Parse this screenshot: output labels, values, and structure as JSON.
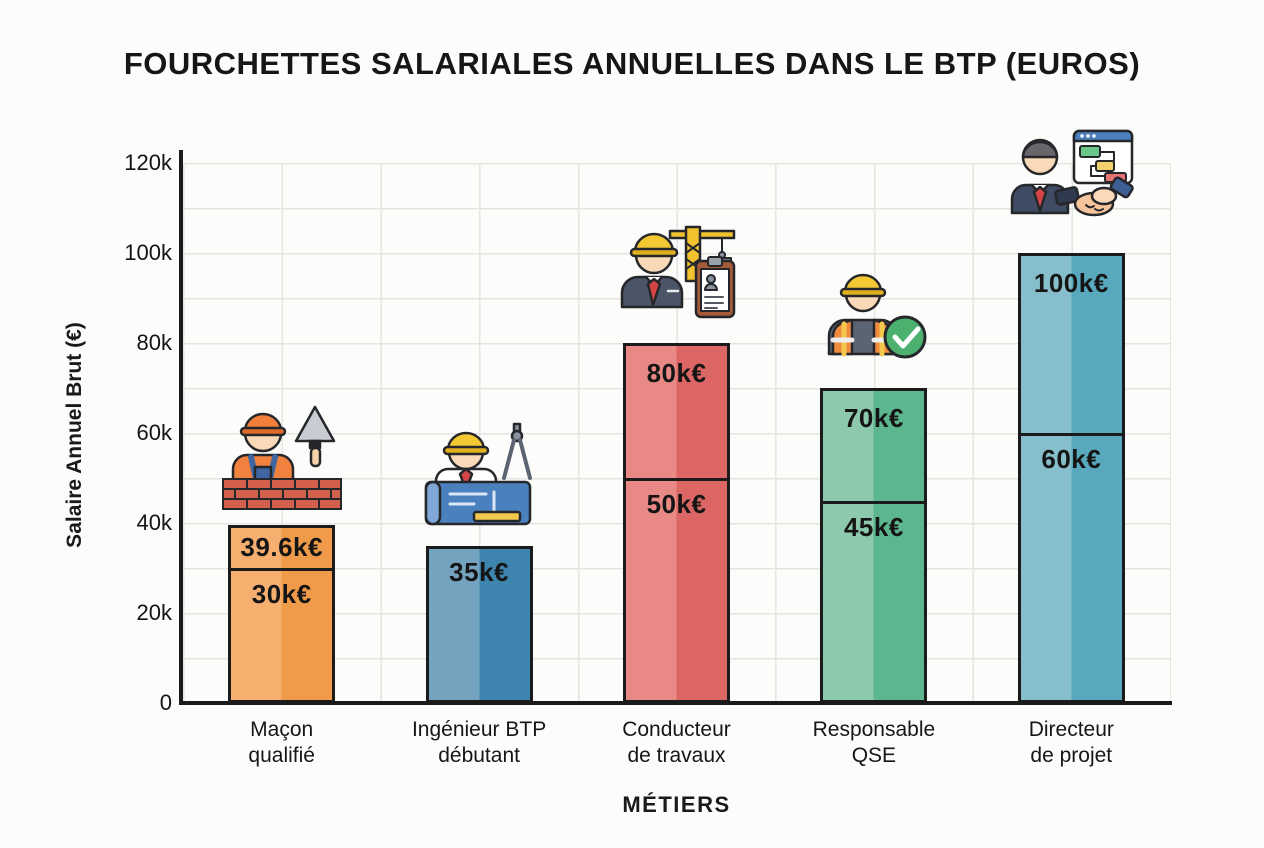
{
  "chart_data": {
    "type": "bar",
    "title": "FOURCHETTES SALARIALES ANNUELLES DANS LE BTP (EUROS)",
    "xlabel": "MÉTIERS",
    "ylabel": "Salaire Annuel Brut (€)",
    "ylim_keur": [
      0,
      120
    ],
    "grid": true,
    "legend": false,
    "yticks": [
      {
        "value_keur": 0,
        "label": "0"
      },
      {
        "value_keur": 20,
        "label": "20k"
      },
      {
        "value_keur": 40,
        "label": "40k"
      },
      {
        "value_keur": 60,
        "label": "60k"
      },
      {
        "value_keur": 80,
        "label": "80k"
      },
      {
        "value_keur": 100,
        "label": "100k"
      },
      {
        "value_keur": 120,
        "label": "120k"
      }
    ],
    "categories": [
      "Maçon qualifié",
      "Ingénieur BTP débutant",
      "Conducteur de travaux",
      "Responsable QSE",
      "Directeur de projet"
    ],
    "bars": [
      {
        "category": "Maçon qualifié",
        "category_lines": [
          "Maçon",
          "qualifié"
        ],
        "range_max_keur": 39.6,
        "range_min_keur": 30,
        "max_label": "39.6k€",
        "min_label": "30k€",
        "color_light": "#F6AF6F",
        "color_dark": "#F09B49",
        "icon": "mason-bricklayer-icon"
      },
      {
        "category": "Ingénieur BTP débutant",
        "category_lines": [
          "Ingénieur BTP",
          "débutant"
        ],
        "range_max_keur": 35,
        "range_min_keur": null,
        "max_label": "35k€",
        "min_label": null,
        "color_light": "#74A3C0",
        "color_dark": "#3D84AE",
        "icon": "engineer-blueprint-icon"
      },
      {
        "category": "Conducteur de travaux",
        "category_lines": [
          "Conducteur",
          "de travaux"
        ],
        "range_max_keur": 80,
        "range_min_keur": 50,
        "max_label": "80k€",
        "min_label": "50k€",
        "color_light": "#E98985",
        "color_dark": "#DC6663",
        "icon": "site-manager-crane-icon"
      },
      {
        "category": "Responsable QSE",
        "category_lines": [
          "Responsable",
          "QSE"
        ],
        "range_max_keur": 70,
        "range_min_keur": 45,
        "max_label": "70k€",
        "min_label": "45k€",
        "color_light": "#8CC9AD",
        "color_dark": "#5CB68E",
        "icon": "safety-inspector-check-icon"
      },
      {
        "category": "Directeur de projet",
        "category_lines": [
          "Directeur",
          "de projet"
        ],
        "range_max_keur": 100,
        "range_min_keur": 60,
        "max_label": "100k€",
        "min_label": "60k€",
        "color_light": "#86BFCB",
        "color_dark": "#58A9BD",
        "icon": "director-handshake-icon"
      }
    ]
  }
}
